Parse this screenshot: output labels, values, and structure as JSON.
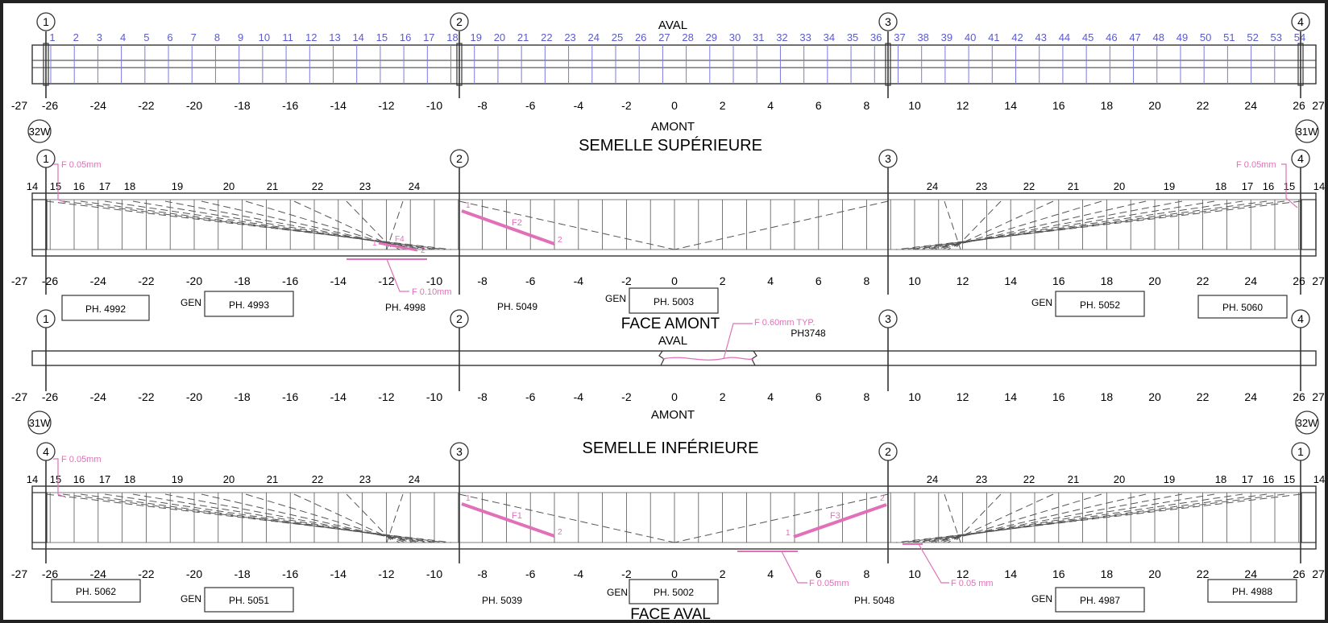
{
  "aval_label": "AVAL",
  "amont_label": "AMONT",
  "top_frame": {
    "stations": [
      "1",
      "2",
      "3",
      "4"
    ],
    "girder_ids": [
      "1",
      "2",
      "3",
      "4",
      "5",
      "6",
      "7",
      "8",
      "9",
      "10",
      "11",
      "12",
      "13",
      "14",
      "15",
      "16",
      "17",
      "18",
      "19",
      "20",
      "21",
      "22",
      "23",
      "24",
      "25",
      "26",
      "27",
      "28",
      "29",
      "30",
      "31",
      "32",
      "33",
      "34",
      "35",
      "36",
      "37",
      "38",
      "39",
      "40",
      "41",
      "42",
      "43",
      "44",
      "45",
      "46",
      "47",
      "48",
      "49",
      "50",
      "51",
      "52",
      "53",
      "54"
    ]
  },
  "scale_ticks": [
    "-27",
    "-26",
    "-24",
    "-22",
    "-20",
    "-18",
    "-16",
    "-14",
    "-12",
    "-10",
    "-8",
    "-6",
    "-4",
    "-2",
    "0",
    "2",
    "4",
    "6",
    "8",
    "10",
    "12",
    "14",
    "16",
    "18",
    "20",
    "22",
    "24",
    "26",
    "27"
  ],
  "semelle_superieure": {
    "title": "SEMELLE SUPÉRIEURE",
    "left_badge": "32W",
    "right_badge": "31W",
    "stations": [
      "1",
      "2",
      "3",
      "4"
    ],
    "panel_left": [
      "14",
      "15",
      "16",
      "17",
      "18",
      "19",
      "20",
      "21",
      "22",
      "23",
      "24"
    ],
    "panel_right": [
      "24",
      "23",
      "22",
      "21",
      "20",
      "19",
      "18",
      "17",
      "16",
      "15",
      "14"
    ],
    "cracks": {
      "left_note": "F 0.05mm",
      "right_note": "F 0.05mm",
      "bottom_note": "F 0.10mm",
      "f2": "F2",
      "f4": "F4",
      "end1": "1",
      "end2": "2"
    },
    "photos": [
      {
        "gen": "",
        "ref": "PH. 4992"
      },
      {
        "gen": "GEN",
        "ref": "PH. 4993"
      },
      {
        "gen": "",
        "ref": "PH. 4998"
      },
      {
        "gen": "",
        "ref": "PH. 5049"
      },
      {
        "gen": "GEN",
        "ref": "PH. 5003"
      },
      {
        "gen": "GEN",
        "ref": "PH. 5052"
      },
      {
        "gen": "",
        "ref": "PH. 5060"
      }
    ],
    "face_label": "FACE AMONT"
  },
  "elevation": {
    "stations": [
      "1",
      "2",
      "3",
      "4"
    ],
    "note": "F 0.60mm TYP.",
    "photo": "PH3748"
  },
  "semelle_inferieure": {
    "title": "SEMELLE INFÉRIEURE",
    "left_badge": "31W",
    "right_badge": "32W",
    "stations": [
      "4",
      "3",
      "2",
      "1"
    ],
    "panel_left": [
      "14",
      "15",
      "16",
      "17",
      "18",
      "19",
      "20",
      "21",
      "22",
      "23",
      "24"
    ],
    "panel_right": [
      "24",
      "23",
      "22",
      "21",
      "20",
      "19",
      "18",
      "17",
      "16",
      "15",
      "14"
    ],
    "cracks": {
      "left_note": "F 0.05mm",
      "mid_note": "F 0.05mm",
      "right_note": "F 0.05 mm",
      "f1": "F1",
      "f3": "F3",
      "end1": "1",
      "end2": "2"
    },
    "photos": [
      {
        "gen": "",
        "ref": "PH. 5062"
      },
      {
        "gen": "GEN",
        "ref": "PH. 5051"
      },
      {
        "gen": "",
        "ref": "PH. 5039"
      },
      {
        "gen": "GEN",
        "ref": "PH. 5002"
      },
      {
        "gen": "",
        "ref": "PH. 5048"
      },
      {
        "gen": "GEN",
        "ref": "PH. 4987"
      },
      {
        "gen": "",
        "ref": "PH. 4988"
      }
    ],
    "face_label": "FACE AVAL"
  },
  "colors": {
    "ink": "#333333",
    "crack": "#e070b8",
    "girder": "#5a5ad0"
  }
}
